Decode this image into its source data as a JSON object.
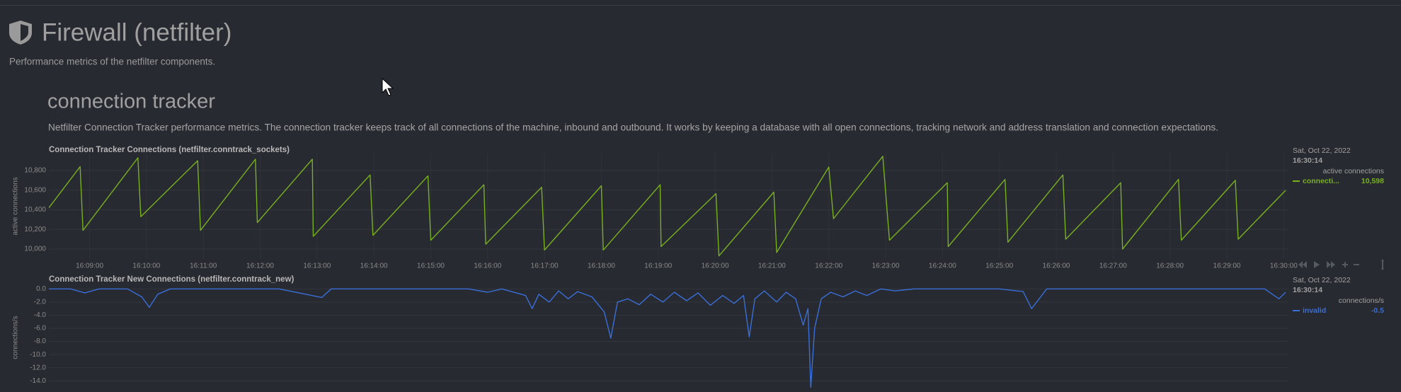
{
  "header": {
    "title": "Firewall (netfilter)",
    "subtitle": "Performance metrics of the netfilter components."
  },
  "section": {
    "title": "connection tracker",
    "description": "Netfilter Connection Tracker performance metrics. The connection tracker keeps track of all connections of the machine, inbound and outbound. It works by keeping a database with all open connections, tracking network and address translation and connection expectations."
  },
  "chart_data": [
    {
      "type": "line",
      "title": "Connection Tracker Connections (netfilter.conntrack_sockets)",
      "y_label": "active connections",
      "date": "Sat, Oct 22, 2022",
      "time": "16:30:14",
      "x": [
        58097,
        58130,
        58133,
        58191,
        58194,
        58254,
        58257,
        58315,
        58317,
        58375,
        58376,
        58436,
        58439,
        58497,
        58500,
        58556,
        58558,
        58617,
        58620,
        58680,
        58682,
        58742,
        58743,
        58801,
        58804,
        58862,
        58865,
        58920,
        58925,
        58977,
        58984,
        59045,
        59046,
        59106,
        59109,
        59167,
        59170,
        59228,
        59230,
        59289,
        59292,
        59349,
        59352,
        59402
      ],
      "series": [
        {
          "name": "connecti...",
          "color": "#78b01e",
          "values": [
            10420,
            10840,
            10190,
            10930,
            10330,
            10900,
            10190,
            10915,
            10270,
            10915,
            10130,
            10755,
            10140,
            10745,
            10090,
            10655,
            10050,
            10630,
            9990,
            10645,
            9990,
            10655,
            10025,
            10565,
            9930,
            10580,
            9965,
            10835,
            10310,
            10945,
            10090,
            10675,
            10025,
            10710,
            10070,
            10755,
            10100,
            10675,
            10000,
            10710,
            10090,
            10700,
            10100,
            10598
          ],
          "current": {
            "value": 10598,
            "label": "10,598"
          }
        }
      ],
      "xlim": [
        58097,
        59405
      ],
      "xticks": [
        {
          "value": 58140,
          "label": "16:09:00"
        },
        {
          "value": 58200,
          "label": "16:10:00"
        },
        {
          "value": 58260,
          "label": "16:11:00"
        },
        {
          "value": 58320,
          "label": "16:12:00"
        },
        {
          "value": 58380,
          "label": "16:13:00"
        },
        {
          "value": 58440,
          "label": "16:14:00"
        },
        {
          "value": 58500,
          "label": "16:15:00"
        },
        {
          "value": 58560,
          "label": "16:16:00"
        },
        {
          "value": 58620,
          "label": "16:17:00"
        },
        {
          "value": 58680,
          "label": "16:18:00"
        },
        {
          "value": 58740,
          "label": "16:19:00"
        },
        {
          "value": 58800,
          "label": "16:20:00"
        },
        {
          "value": 58860,
          "label": "16:21:00"
        },
        {
          "value": 58920,
          "label": "16:22:00"
        },
        {
          "value": 58980,
          "label": "16:23:00"
        },
        {
          "value": 59040,
          "label": "16:24:00"
        },
        {
          "value": 59100,
          "label": "16:25:00"
        },
        {
          "value": 59160,
          "label": "16:26:00"
        },
        {
          "value": 59220,
          "label": "16:27:00"
        },
        {
          "value": 59280,
          "label": "16:28:00"
        },
        {
          "value": 59340,
          "label": "16:29:00"
        },
        {
          "value": 59400,
          "label": "16:30:00"
        }
      ],
      "ylim": [
        9899,
        10973
      ],
      "yticks": [
        {
          "value": 10000,
          "label": "10,000"
        },
        {
          "value": 10200,
          "label": "10,200"
        },
        {
          "value": 10400,
          "label": "10,400"
        },
        {
          "value": 10600,
          "label": "10,600"
        },
        {
          "value": 10800,
          "label": "10,800"
        }
      ],
      "grid": true
    },
    {
      "type": "line",
      "title": "Connection Tracker New Connections (netfilter.conntrack_new)",
      "y_label": "connections/s",
      "date": "Sat, Oct 22, 2022",
      "time": "16:30:14",
      "x": [
        58097,
        58120,
        58135,
        58150,
        58180,
        58195,
        58203,
        58212,
        58225,
        58260,
        58300,
        58340,
        58385,
        58395,
        58430,
        58470,
        58510,
        58540,
        58560,
        58575,
        58600,
        58607,
        58614,
        58625,
        58635,
        58645,
        58655,
        58670,
        58683,
        58690,
        58697,
        58708,
        58720,
        58732,
        58745,
        58757,
        58770,
        58782,
        58795,
        58808,
        58820,
        58830,
        58836,
        58842,
        58852,
        58865,
        58875,
        58885,
        58893,
        58898,
        58901,
        58905,
        58912,
        58922,
        58935,
        58948,
        58960,
        58975,
        58990,
        59010,
        59040,
        59070,
        59100,
        59125,
        59134,
        59150,
        59180,
        59220,
        59260,
        59300,
        59340,
        59380,
        59395,
        59402
      ],
      "series": [
        {
          "name": "invalid",
          "color": "#3a6fd8",
          "values": [
            0,
            0,
            -0.6,
            0,
            0,
            -1.2,
            -2.8,
            -0.8,
            0,
            0,
            0,
            0,
            -1.3,
            0,
            0,
            0,
            0,
            0,
            -0.5,
            0,
            -1.0,
            -3.0,
            -0.8,
            -2.0,
            -0.3,
            -1.5,
            -0.4,
            -1.2,
            -3.5,
            -7.5,
            -2.0,
            -1.5,
            -2.4,
            -0.8,
            -2.0,
            -0.5,
            -1.8,
            -0.6,
            -2.5,
            -1.0,
            -2.2,
            -1.0,
            -7.3,
            -1.5,
            -0.3,
            -2.0,
            -0.5,
            -1.5,
            -5.5,
            -3.0,
            -15.0,
            -6.0,
            -1.5,
            -0.5,
            -1.2,
            -0.3,
            -1.0,
            0,
            -0.3,
            0,
            0,
            0,
            0,
            -0.4,
            -3.0,
            0,
            0,
            0,
            0,
            0,
            0,
            0,
            -1.5,
            -0.5
          ],
          "current": -0.5
        }
      ],
      "xlim": [
        58097,
        59405
      ],
      "ylim": [
        -15.7,
        0.9
      ],
      "yticks": [
        {
          "value": 0,
          "label": "0.0"
        },
        {
          "value": -2,
          "label": "-2.0"
        },
        {
          "value": -4,
          "label": "-4.0"
        },
        {
          "value": -6,
          "label": "-6.0"
        },
        {
          "value": -8,
          "label": "-8.0"
        },
        {
          "value": -10,
          "label": "-10.0"
        },
        {
          "value": -12,
          "label": "-12.0"
        },
        {
          "value": -14,
          "label": "-14.0"
        }
      ],
      "grid": true
    }
  ]
}
